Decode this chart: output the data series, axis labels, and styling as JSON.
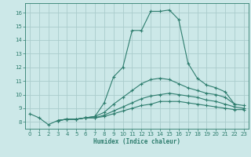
{
  "xlabel": "Humidex (Indice chaleur)",
  "bg_color": "#cce8e8",
  "line_color": "#2e7d6e",
  "grid_color": "#aacccc",
  "xlim": [
    -0.5,
    23.5
  ],
  "ylim": [
    7.5,
    16.7
  ],
  "xticks": [
    0,
    1,
    2,
    3,
    4,
    5,
    6,
    7,
    8,
    9,
    10,
    11,
    12,
    13,
    14,
    15,
    16,
    17,
    18,
    19,
    20,
    21,
    22,
    23
  ],
  "yticks": [
    8,
    9,
    10,
    11,
    12,
    13,
    14,
    15,
    16
  ],
  "lines": [
    {
      "x": [
        0,
        1,
        2,
        3,
        4,
        5,
        6,
        7,
        8,
        9,
        10,
        11,
        12,
        13,
        14,
        15,
        16,
        17,
        18,
        19,
        20,
        21,
        22
      ],
      "y": [
        8.6,
        8.3,
        7.8,
        8.1,
        8.2,
        8.2,
        8.3,
        8.4,
        9.4,
        11.3,
        12.0,
        14.7,
        14.7,
        16.1,
        16.1,
        16.2,
        15.5,
        12.3,
        11.2,
        10.7,
        10.5,
        10.2,
        9.3
      ]
    },
    {
      "x": [
        3,
        4,
        5,
        6,
        7,
        8,
        9,
        10,
        11,
        12,
        13,
        14,
        15,
        16,
        17,
        18,
        19,
        20,
        21,
        22,
        23
      ],
      "y": [
        8.1,
        8.2,
        8.2,
        8.3,
        8.4,
        8.7,
        9.3,
        9.8,
        10.3,
        10.8,
        11.1,
        11.2,
        11.1,
        10.8,
        10.5,
        10.3,
        10.1,
        10.0,
        9.8,
        9.3,
        9.2
      ]
    },
    {
      "x": [
        3,
        4,
        5,
        6,
        7,
        8,
        9,
        10,
        11,
        12,
        13,
        14,
        15,
        16,
        17,
        18,
        19,
        20,
        21,
        22,
        23
      ],
      "y": [
        8.1,
        8.2,
        8.2,
        8.3,
        8.3,
        8.5,
        8.8,
        9.1,
        9.4,
        9.7,
        9.9,
        10.0,
        10.1,
        10.0,
        9.9,
        9.8,
        9.6,
        9.5,
        9.3,
        9.1,
        9.0
      ]
    },
    {
      "x": [
        3,
        4,
        5,
        6,
        7,
        8,
        9,
        10,
        11,
        12,
        13,
        14,
        15,
        16,
        17,
        18,
        19,
        20,
        21,
        22,
        23
      ],
      "y": [
        8.1,
        8.2,
        8.2,
        8.3,
        8.3,
        8.4,
        8.6,
        8.8,
        9.0,
        9.2,
        9.3,
        9.5,
        9.5,
        9.5,
        9.4,
        9.3,
        9.2,
        9.1,
        9.0,
        8.9,
        8.9
      ]
    }
  ],
  "marker": "+"
}
